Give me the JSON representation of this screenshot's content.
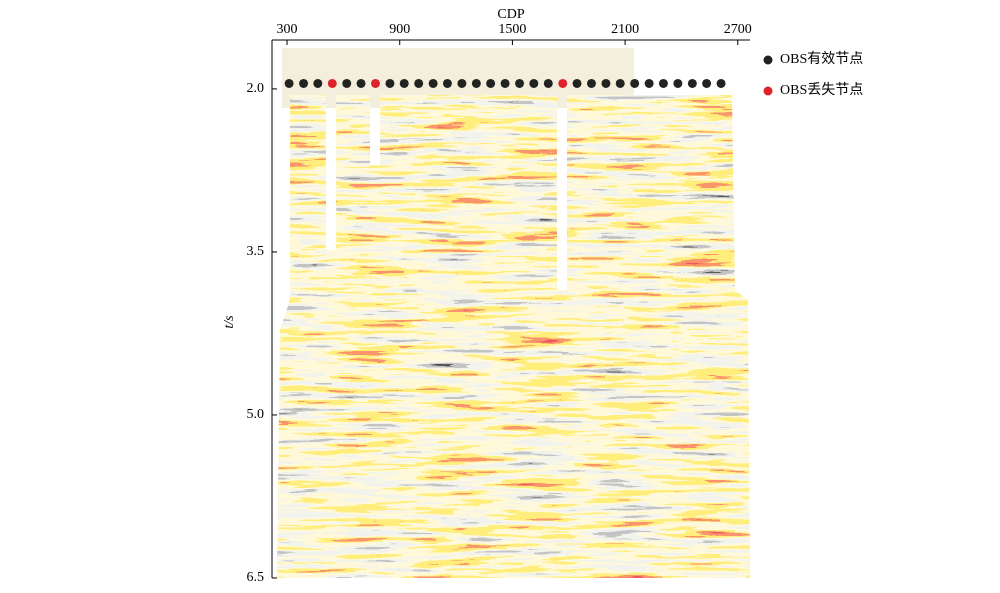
{
  "chart_data": {
    "type": "scatter",
    "x_label": "CDP",
    "y_label": "t/s",
    "xlim": [
      220,
      2765
    ],
    "xticks": [
      300,
      900,
      1500,
      2100,
      2700
    ],
    "ylim": [
      1.55,
      6.5
    ],
    "y_inverted": true,
    "yticks": [
      {
        "value": 2,
        "label": "2.0"
      },
      {
        "value": 3.5,
        "label": "3.5"
      },
      {
        "value": 5,
        "label": "5.0"
      },
      {
        "value": 6.5,
        "label": "6.5"
      }
    ],
    "series": [
      {
        "name": "OBS有效节点",
        "color": "#222222",
        "x": [
          311,
          388,
          464,
          618,
          694,
          848,
          924,
          1001,
          1078,
          1154,
          1231,
          1308,
          1384,
          1461,
          1538,
          1614,
          1691,
          1844,
          1921,
          1998,
          2074,
          2151,
          2228,
          2304,
          2381,
          2458,
          2534,
          2611
        ],
        "values": [
          1.95,
          1.95,
          1.95,
          1.95,
          1.95,
          1.95,
          1.95,
          1.95,
          1.95,
          1.95,
          1.95,
          1.95,
          1.95,
          1.95,
          1.95,
          1.95,
          1.95,
          1.95,
          1.95,
          1.95,
          1.95,
          1.95,
          1.95,
          1.95,
          1.95,
          1.95,
          1.95,
          1.95
        ]
      },
      {
        "name": "OBS丢失节点",
        "color": "#e0232a",
        "x": [
          541,
          771,
          1768
        ],
        "values": [
          1.95,
          1.95,
          1.95
        ]
      }
    ]
  }
}
